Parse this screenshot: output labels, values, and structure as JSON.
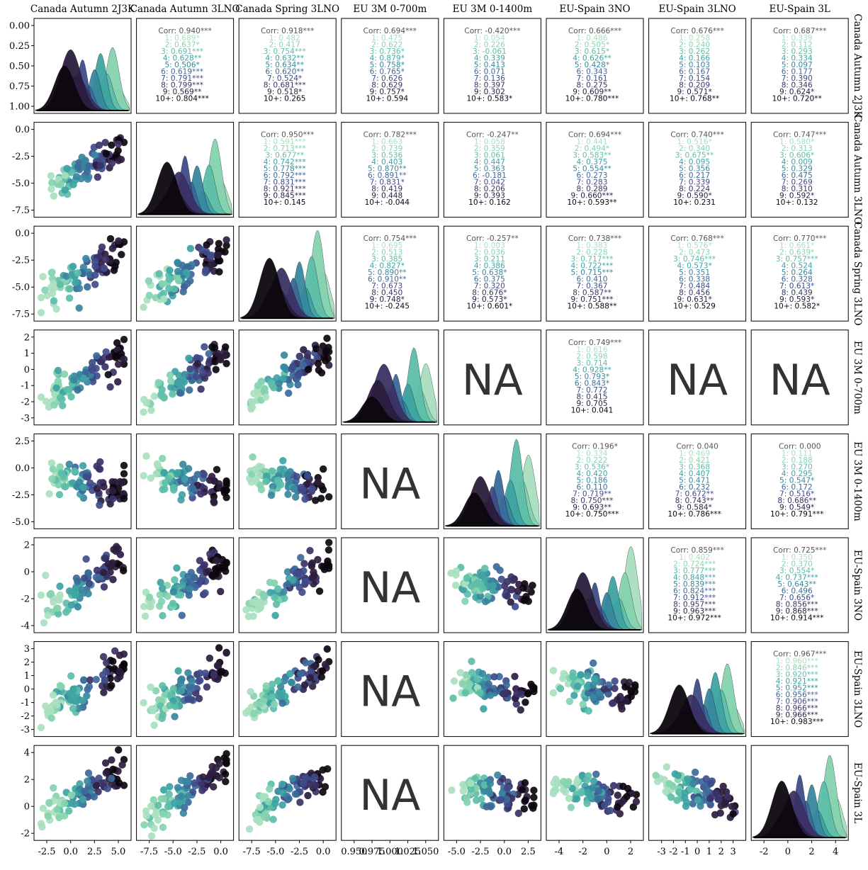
{
  "chart_data": {
    "type": "scatter",
    "title": "",
    "variables": [
      "Canada Autumn 2J3K",
      "Canada Autumn 3LNO",
      "Canada Spring 3LNO",
      "EU 3M 0-700m",
      "EU 3M 0-1400m",
      "EU-Spain 3NO",
      "EU-Spain 3LNO",
      "EU-Spain 3L"
    ],
    "age_groups": [
      "1",
      "2",
      "3",
      "4",
      "5",
      "6",
      "7",
      "8",
      "9",
      "10+"
    ],
    "palette": [
      "#a9dfbf",
      "#86d3b0",
      "#5dbea9",
      "#3fa3a3",
      "#38879e",
      "#3c6a9a",
      "#3f4c8a",
      "#3b3266",
      "#2c1d3e",
      "#0d070f"
    ],
    "x_ticks": [
      [
        "-2.5",
        "0.0",
        "2.5",
        "5.0"
      ],
      [
        "-7.5",
        "-5.0",
        "-2.5",
        "0.0"
      ],
      [
        "-7.5",
        "-5.0",
        "-2.5",
        "0.0"
      ],
      [
        "0.950",
        "0.975",
        "1.000",
        "1.025",
        "1.050"
      ],
      [
        "-5.0",
        "-2.5",
        "0.0",
        "2.5"
      ],
      [
        "-4",
        "-2",
        "0",
        "2"
      ],
      [
        "-3",
        "-2",
        "-1",
        "0",
        "1",
        "2",
        "3"
      ],
      [
        "-2",
        "0",
        "2",
        "4"
      ]
    ],
    "y_ticks": [
      [
        "0.00",
        "0.25",
        "0.50",
        "0.75",
        "1.00"
      ],
      [
        "0.0",
        "-2.5",
        "-5.0",
        "-7.5"
      ],
      [
        "0.0",
        "-2.5",
        "-5.0",
        "-7.5"
      ],
      [
        "2",
        "1",
        "0",
        "-1",
        "-2",
        "-3"
      ],
      [
        "2.5",
        "0.0",
        "-2.5",
        "-5.0"
      ],
      [
        "2",
        "0",
        "-2",
        "-4"
      ],
      [
        "3",
        "2",
        "1",
        "0",
        "-1",
        "-2",
        "-3"
      ],
      [
        "4",
        "2",
        "0",
        "-2"
      ]
    ],
    "na_label": "NA",
    "correlations": [
      {
        "row": 0,
        "col": 1,
        "overall": "Corr: 0.940***",
        "groups": [
          "1: 0.689*",
          "2: 0.637*",
          "3: 0.691***",
          "4: 0.628**",
          "5: 0.506*",
          "6: 0.619***",
          "7: 0.791***",
          "8: 0.799***",
          "9: 0.569**",
          "10+: 0.804***"
        ]
      },
      {
        "row": 0,
        "col": 2,
        "overall": "Corr: 0.918***",
        "groups": [
          "1: 0.482",
          "2: 0.417",
          "3: 0.754***",
          "4: 0.632**",
          "5: 0.634**",
          "6: 0.620**",
          "7: 0.524*",
          "8: 0.681***",
          "9: 0.518*",
          "10+: 0.265"
        ]
      },
      {
        "row": 0,
        "col": 3,
        "overall": "Corr: 0.694***",
        "groups": [
          "1: 0.475",
          "2: 0.622",
          "3: 0.736*",
          "4: 0.879*",
          "5: 0.758*",
          "6: 0.765*",
          "7: 0.626",
          "8: 0.629",
          "9: 0.757*",
          "10+: 0.594"
        ]
      },
      {
        "row": 0,
        "col": 4,
        "overall": "Corr: -0.420***",
        "groups": [
          "1: 0.054",
          "2: 0.226",
          "3: -0.061",
          "4: 0.339",
          "5: 0.413",
          "6: 0.071",
          "7: 0.136",
          "8: 0.397",
          "9: 0.302",
          "10+: 0.583*"
        ]
      },
      {
        "row": 0,
        "col": 5,
        "overall": "Corr: 0.666***",
        "groups": [
          "1: 0.486",
          "2: 0.505*",
          "3: 0.615*",
          "4: 0.626**",
          "5: 0.428*",
          "6: 0.343",
          "7: 0.161",
          "8: 0.275",
          "9: 0.609**",
          "10+: 0.780***"
        ]
      },
      {
        "row": 0,
        "col": 6,
        "overall": "Corr: 0.676***",
        "groups": [
          "1: 0.258",
          "2: 0.240",
          "3: 0.262",
          "4: 0.166",
          "5: 0.103",
          "6: 0.167",
          "7: 0.154",
          "8: 0.209",
          "9: 0.571*",
          "10+: 0.768**"
        ]
      },
      {
        "row": 0,
        "col": 7,
        "overall": "Corr: 0.687***",
        "groups": [
          "1: 0.339",
          "2: 0.112",
          "3: 0.293",
          "4: 0.334",
          "5: 0.097",
          "6: 0.177",
          "7: 0.390",
          "8: 0.346",
          "9: 0.624*",
          "10+: 0.720**"
        ]
      },
      {
        "row": 1,
        "col": 2,
        "overall": "Corr: 0.950***",
        "groups": [
          "1: 0.591***",
          "2: 0.713***",
          "3: 0.677**",
          "4: 0.742***",
          "5: 0.778***",
          "6: 0.792***",
          "7: 0.831***",
          "8: 0.921***",
          "9: 0.845***",
          "10+: 0.145"
        ]
      },
      {
        "row": 1,
        "col": 3,
        "overall": "Corr: 0.782***",
        "groups": [
          "1: 0.663",
          "2: 0.739",
          "3: 0.536",
          "4: 0.403",
          "5: 0.870**",
          "6: 0.891**",
          "7: 0.831*",
          "8: 0.419",
          "9: 0.448",
          "10+: -0.044"
        ]
      },
      {
        "row": 1,
        "col": 4,
        "overall": "Corr: -0.247**",
        "groups": [
          "1: 0.058",
          "2: 0.359",
          "3: 0.061",
          "4: 0.447",
          "5: 0.363",
          "6: -0.181",
          "7: 0.042",
          "8: 0.206",
          "9: 0.393",
          "10+: 0.162"
        ]
      },
      {
        "row": 1,
        "col": 5,
        "overall": "Corr: 0.694***",
        "groups": [
          "1: 0.441",
          "2: 0.494*",
          "3: 0.583**",
          "4: 0.375",
          "5: 0.554**",
          "6: 0.273",
          "7: 0.283",
          "8: 0.289",
          "9: 0.660***",
          "10+: 0.593**"
        ]
      },
      {
        "row": 1,
        "col": 6,
        "overall": "Corr: 0.740***",
        "groups": [
          "1: 0.516*",
          "2: 0.340",
          "3: 0.675**",
          "4: 0.095",
          "5: 0.356",
          "6: 0.217",
          "7: 0.339",
          "8: 0.224",
          "9: 0.590*",
          "10+: 0.231"
        ]
      },
      {
        "row": 1,
        "col": 7,
        "overall": "Corr: 0.747***",
        "groups": [
          "1: 0.580*",
          "2: 0.313",
          "3: 0.606*",
          "4: 0.009",
          "5: 0.329",
          "6: 0.475",
          "7: 0.269",
          "8: 0.310",
          "9: 0.592*",
          "10+: 0.132"
        ]
      },
      {
        "row": 2,
        "col": 3,
        "overall": "Corr: 0.754***",
        "groups": [
          "1: 0.695",
          "2: 0.513",
          "3: 0.385",
          "4: 0.827*",
          "5: 0.890**",
          "6: 0.910**",
          "7: 0.673",
          "8: 0.450",
          "9: 0.748*",
          "10+: -0.245"
        ]
      },
      {
        "row": 2,
        "col": 4,
        "overall": "Corr: -0.257**",
        "groups": [
          "1: 0.003",
          "2: 0.036",
          "3: 0.211",
          "4: 0.386",
          "5: 0.638*",
          "6: 0.375",
          "7: 0.320",
          "8: 0.676*",
          "9: 0.573*",
          "10+: 0.601*"
        ]
      },
      {
        "row": 2,
        "col": 5,
        "overall": "Corr: 0.738***",
        "groups": [
          "1: 0.383",
          "2: 0.228",
          "3: 0.717***",
          "4: 0.722***",
          "5: 0.715***",
          "6: 0.410",
          "7: 0.367",
          "8: 0.587**",
          "9: 0.751***",
          "10+: 0.588**"
        ]
      },
      {
        "row": 2,
        "col": 6,
        "overall": "Corr: 0.768***",
        "groups": [
          "1: 0.576*",
          "2: 0.473",
          "3: 0.746***",
          "4: 0.573*",
          "5: 0.351",
          "6: 0.338",
          "7: 0.484",
          "8: 0.456",
          "9: 0.631*",
          "10+: 0.529"
        ]
      },
      {
        "row": 2,
        "col": 7,
        "overall": "Corr: 0.770***",
        "groups": [
          "1: 0.661*",
          "2: 0.639*",
          "3: 0.757***",
          "4: 0.524",
          "5: 0.264",
          "6: 0.328",
          "7: 0.613*",
          "8: 0.439",
          "9: 0.593*",
          "10+: 0.582*"
        ]
      },
      {
        "row": 3,
        "col": 5,
        "overall": "Corr: 0.749***",
        "groups": [
          "1: 0.616",
          "2: 0.598",
          "3: 0.714",
          "4: 0.928**",
          "5: 0.793*",
          "6: 0.843*",
          "7: 0.772",
          "8: 0.415",
          "9: 0.705",
          "10+: 0.041"
        ]
      },
      {
        "row": 4,
        "col": 5,
        "overall": "Corr: 0.196*",
        "groups": [
          "1: 0.334",
          "2: 0.222",
          "3: 0.536*",
          "4: 0.420",
          "5: 0.186",
          "6: 0.110",
          "7: 0.719**",
          "8: 0.750***",
          "9: 0.693**",
          "10+: 0.750***"
        ]
      },
      {
        "row": 4,
        "col": 6,
        "overall": "Corr: 0.040",
        "groups": [
          "1: 0.469",
          "2: 0.421",
          "3: 0.368",
          "4: 0.407",
          "5: 0.471",
          "6: 0.232",
          "7: 0.672**",
          "8: 0.743**",
          "9: 0.584*",
          "10+: 0.786***"
        ]
      },
      {
        "row": 4,
        "col": 7,
        "overall": "Corr: 0.000",
        "groups": [
          "1: 0.111",
          "2: 0.188",
          "3: 0.270",
          "4: 0.295",
          "5: 0.547*",
          "6: 0.172",
          "7: 0.516*",
          "8: 0.686**",
          "9: 0.549*",
          "10+: 0.791***"
        ]
      },
      {
        "row": 5,
        "col": 6,
        "overall": "Corr: 0.859***",
        "groups": [
          "1: 0.402",
          "2: 0.724***",
          "3: 0.777***",
          "4: 0.848***",
          "5: 0.839***",
          "6: 0.824***",
          "7: 0.912***",
          "8: 0.957***",
          "9: 0.963***",
          "10+: 0.972***"
        ]
      },
      {
        "row": 5,
        "col": 7,
        "overall": "Corr: 0.725***",
        "groups": [
          "1: 0.350",
          "2: 0.370",
          "3: 0.554*",
          "4: 0.737***",
          "5: 0.643**",
          "6: 0.496",
          "7: 0.656*",
          "8: 0.856***",
          "9: 0.868***",
          "10+: 0.914***"
        ]
      },
      {
        "row": 6,
        "col": 7,
        "overall": "Corr: 0.967***",
        "groups": [
          "1: 0.960***",
          "2: 0.846***",
          "3: 0.920***",
          "4: 0.921***",
          "5: 0.952***",
          "6: 0.956***",
          "7: 0.906***",
          "8: 0.966***",
          "9: 0.966***",
          "10+: 0.983***"
        ]
      }
    ],
    "na_cells": [
      [
        3,
        4
      ],
      [
        3,
        6
      ],
      [
        3,
        7
      ],
      [
        4,
        3
      ],
      [
        5,
        3
      ],
      [
        6,
        3
      ],
      [
        7,
        3
      ]
    ]
  }
}
